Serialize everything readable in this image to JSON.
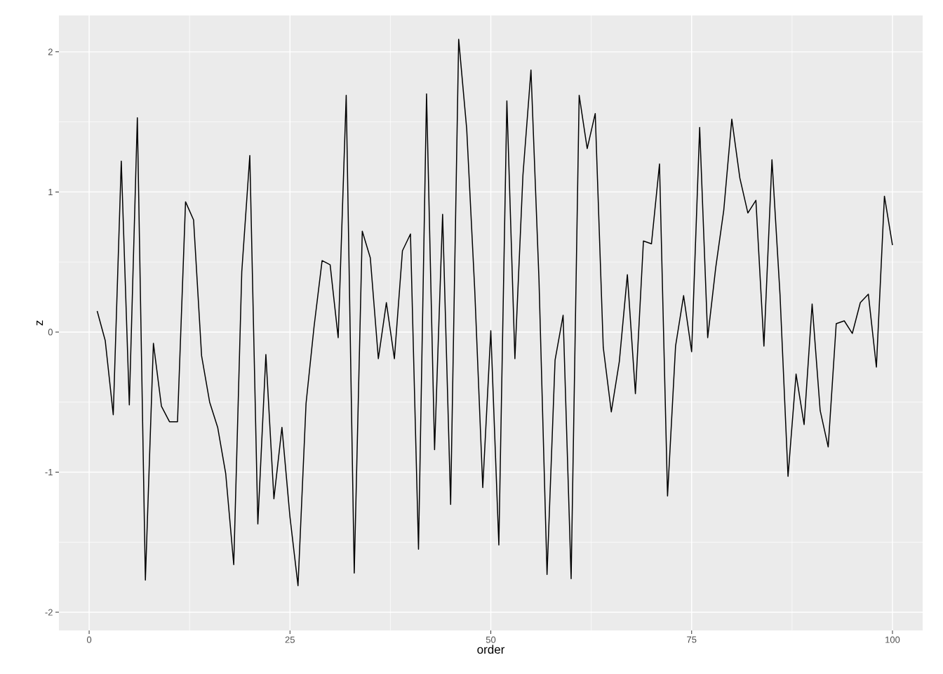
{
  "chart_data": {
    "type": "line",
    "xlabel": "order",
    "ylabel": "z",
    "color": "#000000",
    "grid": true,
    "x": [
      1,
      2,
      3,
      4,
      5,
      6,
      7,
      8,
      9,
      10,
      11,
      12,
      13,
      14,
      15,
      16,
      17,
      18,
      19,
      20,
      21,
      22,
      23,
      24,
      25,
      26,
      27,
      28,
      29,
      30,
      31,
      32,
      33,
      34,
      35,
      36,
      37,
      38,
      39,
      40,
      41,
      42,
      43,
      44,
      45,
      46,
      47,
      48,
      49,
      50,
      51,
      52,
      53,
      54,
      55,
      56,
      57,
      58,
      59,
      60,
      61,
      62,
      63,
      64,
      65,
      66,
      67,
      68,
      69,
      70,
      71,
      72,
      73,
      74,
      75,
      76,
      77,
      78,
      79,
      80,
      81,
      82,
      83,
      84,
      85,
      86,
      87,
      88,
      89,
      90,
      91,
      92,
      93,
      94,
      95,
      96,
      97,
      98,
      99,
      100
    ],
    "values": [
      0.15,
      -0.06,
      -0.59,
      1.22,
      -0.52,
      1.53,
      -1.77,
      -0.08,
      -0.53,
      -0.64,
      -0.64,
      0.93,
      0.8,
      -0.17,
      -0.5,
      -0.68,
      -1.01,
      -1.66,
      0.43,
      1.26,
      -1.37,
      -0.16,
      -1.19,
      -0.68,
      -1.32,
      -1.81,
      -0.51,
      0.04,
      0.51,
      0.48,
      -0.04,
      1.69,
      -1.72,
      0.72,
      0.53,
      -0.19,
      0.21,
      -0.19,
      0.58,
      0.7,
      -1.55,
      1.7,
      -0.84,
      0.84,
      -1.23,
      2.09,
      1.45,
      0.3,
      -1.11,
      0.01,
      -1.52,
      1.65,
      -0.19,
      1.12,
      1.87,
      0.37,
      -1.73,
      -0.2,
      0.12,
      -1.76,
      1.69,
      1.31,
      1.56,
      -0.11,
      -0.57,
      -0.21,
      0.41,
      -0.44,
      0.65,
      0.63,
      1.2,
      -1.17,
      -0.1,
      0.26,
      -0.14,
      1.46,
      -0.04,
      0.46,
      0.87,
      1.52,
      1.1,
      0.85,
      0.94,
      -0.1,
      1.23,
      0.27,
      -1.03,
      -0.3,
      -0.66,
      0.2,
      -0.56,
      -0.82,
      0.06,
      0.08,
      -0.01,
      0.21,
      0.27,
      -0.25,
      0.97,
      0.62
    ],
    "xlim": [
      -3.76,
      103.76
    ],
    "ylim": [
      -2.13,
      2.26
    ],
    "xticks": [
      0,
      25,
      50,
      75,
      100
    ],
    "yticks": [
      -2,
      -1,
      0,
      1,
      2
    ]
  }
}
